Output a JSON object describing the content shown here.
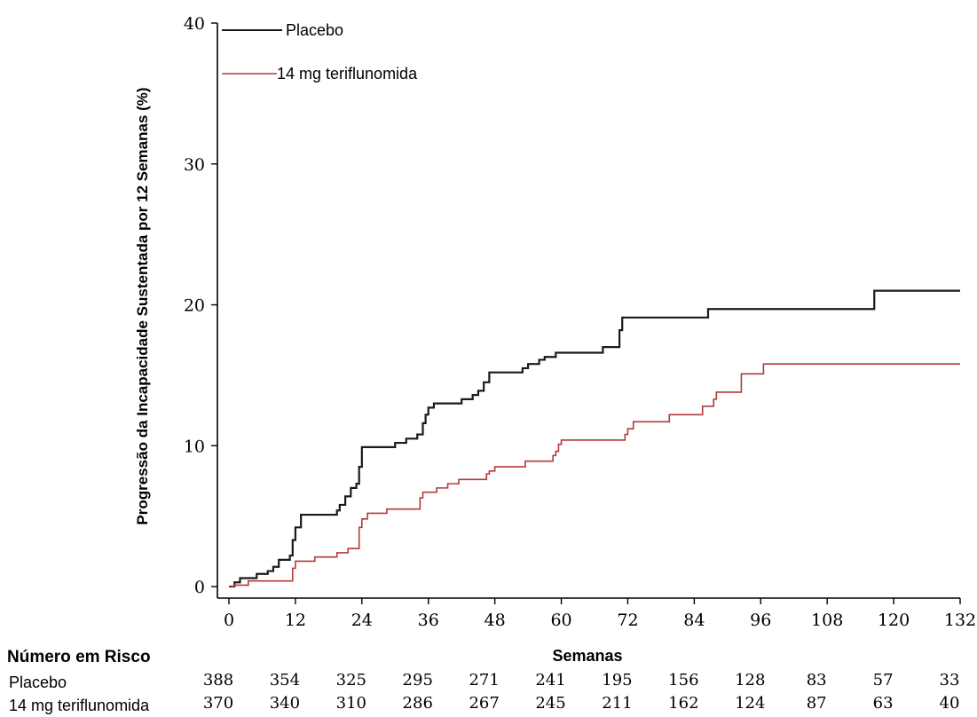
{
  "chart_data": {
    "type": "line",
    "title": "",
    "xlabel": "Semanas",
    "ylabel": "Progressão da Incapacidade Sustentada por 12 Semanas (%)",
    "xlim": [
      0,
      132
    ],
    "ylim": [
      0,
      40
    ],
    "x_ticks": [
      0,
      12,
      24,
      36,
      48,
      60,
      72,
      84,
      96,
      108,
      120,
      132
    ],
    "y_ticks": [
      0,
      10,
      20,
      30,
      40
    ],
    "legend_position": "top-left",
    "grid": false,
    "series": [
      {
        "name": "Placebo",
        "color": "#1a1a1a",
        "points": [
          [
            0,
            0
          ],
          [
            1,
            0.3
          ],
          [
            2,
            0.6
          ],
          [
            4,
            0.6
          ],
          [
            5,
            0.9
          ],
          [
            7,
            1.1
          ],
          [
            8,
            1.4
          ],
          [
            9,
            1.9
          ],
          [
            11,
            2.2
          ],
          [
            11.5,
            3.3
          ],
          [
            12,
            4.2
          ],
          [
            13,
            5.1
          ],
          [
            19,
            5.1
          ],
          [
            19.5,
            5.4
          ],
          [
            20,
            5.8
          ],
          [
            21,
            6.4
          ],
          [
            22,
            7.0
          ],
          [
            23,
            7.3
          ],
          [
            23.5,
            8.5
          ],
          [
            24,
            9.9
          ],
          [
            29,
            9.9
          ],
          [
            30,
            10.2
          ],
          [
            32,
            10.5
          ],
          [
            34,
            10.8
          ],
          [
            35,
            11.6
          ],
          [
            35.5,
            12.2
          ],
          [
            36,
            12.7
          ],
          [
            37,
            13.0
          ],
          [
            41,
            13.0
          ],
          [
            42,
            13.3
          ],
          [
            44,
            13.6
          ],
          [
            45,
            13.9
          ],
          [
            46,
            14.5
          ],
          [
            47,
            15.2
          ],
          [
            52,
            15.2
          ],
          [
            53,
            15.5
          ],
          [
            54,
            15.8
          ],
          [
            56,
            16.1
          ],
          [
            57,
            16.3
          ],
          [
            59,
            16.6
          ],
          [
            67,
            16.6
          ],
          [
            67.5,
            17.0
          ],
          [
            70,
            17.0
          ],
          [
            70.5,
            18.2
          ],
          [
            71,
            19.1
          ],
          [
            86,
            19.1
          ],
          [
            86.5,
            19.7
          ],
          [
            116,
            19.7
          ],
          [
            116.5,
            21.0
          ],
          [
            132,
            21.0
          ]
        ]
      },
      {
        "name": "14 mg teriflunomida",
        "color": "#b23a3a",
        "points": [
          [
            0,
            0
          ],
          [
            1,
            0.1
          ],
          [
            3,
            0.1
          ],
          [
            3.5,
            0.4
          ],
          [
            11,
            0.4
          ],
          [
            11.5,
            1.3
          ],
          [
            12,
            1.8
          ],
          [
            15,
            1.8
          ],
          [
            15.5,
            2.1
          ],
          [
            19,
            2.1
          ],
          [
            19.5,
            2.4
          ],
          [
            21,
            2.4
          ],
          [
            21.5,
            2.7
          ],
          [
            23,
            2.7
          ],
          [
            23.5,
            4.2
          ],
          [
            24,
            4.8
          ],
          [
            25,
            5.2
          ],
          [
            28,
            5.2
          ],
          [
            28.5,
            5.5
          ],
          [
            34,
            5.5
          ],
          [
            34.5,
            6.3
          ],
          [
            35,
            6.7
          ],
          [
            37,
            6.7
          ],
          [
            37.5,
            7.0
          ],
          [
            39,
            7.0
          ],
          [
            39.5,
            7.3
          ],
          [
            41,
            7.3
          ],
          [
            41.5,
            7.6
          ],
          [
            46,
            7.6
          ],
          [
            46.5,
            8.0
          ],
          [
            47,
            8.2
          ],
          [
            48,
            8.5
          ],
          [
            53,
            8.5
          ],
          [
            53.5,
            8.9
          ],
          [
            58,
            8.9
          ],
          [
            58.5,
            9.3
          ],
          [
            59,
            9.6
          ],
          [
            59.5,
            10.1
          ],
          [
            60,
            10.4
          ],
          [
            71,
            10.4
          ],
          [
            71.5,
            10.8
          ],
          [
            72,
            11.2
          ],
          [
            73,
            11.7
          ],
          [
            79,
            11.7
          ],
          [
            79.5,
            12.2
          ],
          [
            85,
            12.2
          ],
          [
            85.5,
            12.8
          ],
          [
            87,
            12.8
          ],
          [
            87.5,
            13.3
          ],
          [
            88,
            13.8
          ],
          [
            92,
            13.8
          ],
          [
            92.5,
            15.1
          ],
          [
            96,
            15.1
          ],
          [
            96.5,
            15.8
          ],
          [
            132,
            15.8
          ]
        ]
      }
    ]
  },
  "risk_table": {
    "title": "Número em Risco",
    "rows": [
      {
        "label": "Placebo",
        "values": [
          388,
          354,
          325,
          295,
          271,
          241,
          195,
          156,
          128,
          83,
          57,
          33
        ]
      },
      {
        "label": "14 mg teriflunomida",
        "values": [
          370,
          340,
          310,
          286,
          267,
          245,
          211,
          162,
          124,
          87,
          63,
          40
        ]
      }
    ]
  }
}
